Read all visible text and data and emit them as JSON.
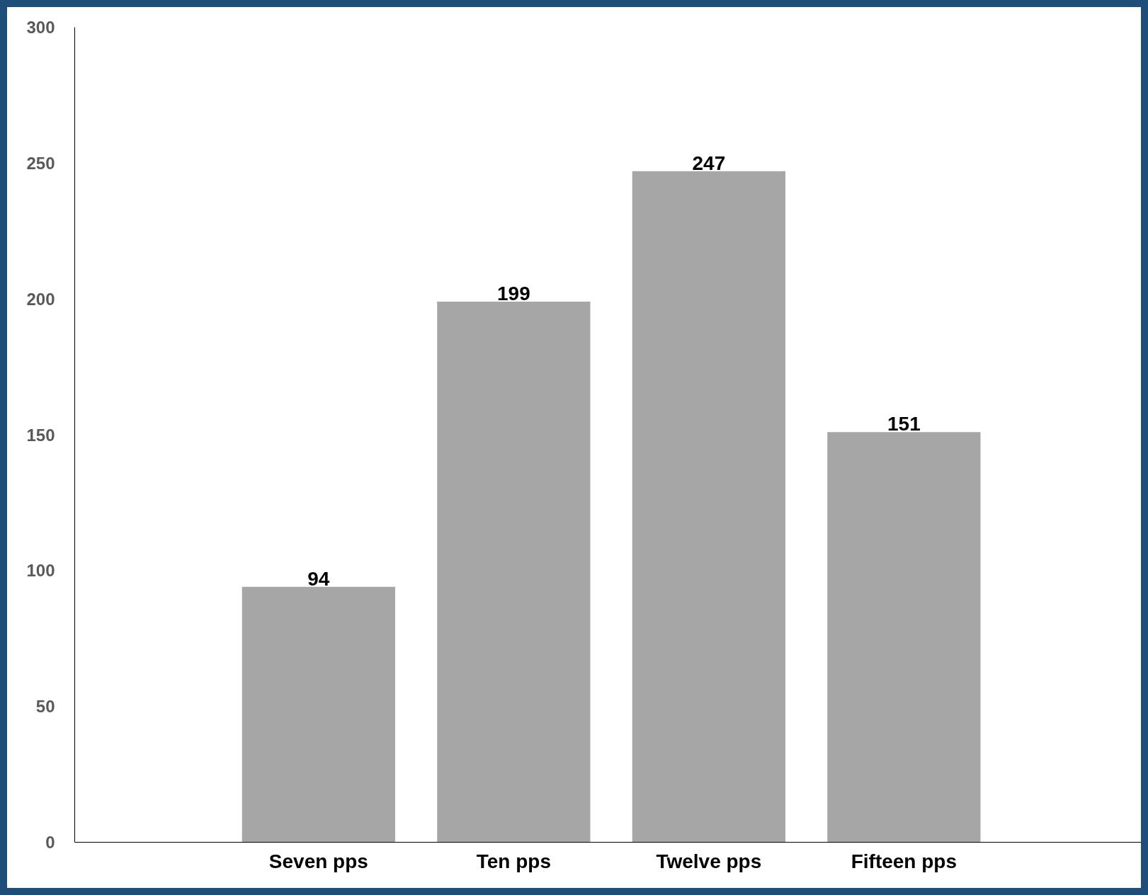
{
  "chart_data": {
    "type": "bar",
    "categories": [
      "Seven pps",
      "Ten pps",
      "Twelve pps",
      "Fifteen pps"
    ],
    "values": [
      94,
      199,
      247,
      151
    ],
    "color": "#a6a6a6",
    "ylim": [
      0,
      300
    ],
    "yticks": [
      0,
      50,
      100,
      150,
      200,
      250,
      300
    ],
    "grid": false,
    "data_labels": true
  }
}
